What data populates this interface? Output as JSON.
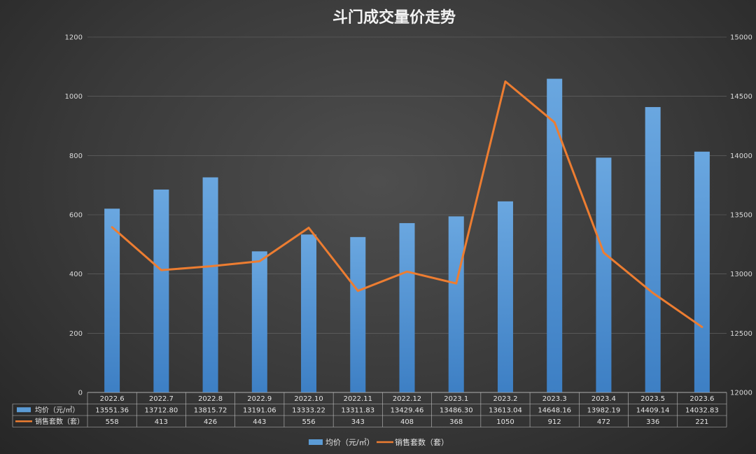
{
  "chart_data": {
    "type": "bar",
    "title": "斗门成交量价走势",
    "categories": [
      "2022.6",
      "2022.7",
      "2022.8",
      "2022.9",
      "2022.10",
      "2022.11",
      "2022.12",
      "2023.1",
      "2023.2",
      "2023.3",
      "2023.4",
      "2023.5",
      "2023.6"
    ],
    "series": [
      {
        "name": "均价（元/㎡）",
        "type": "bar",
        "axis": "right",
        "color": "#5b9bd5",
        "values": [
          13551.36,
          13712.8,
          13815.72,
          13191.06,
          13333.22,
          13311.83,
          13429.46,
          13486.3,
          13613.04,
          14648.16,
          13982.19,
          14409.14,
          14032.83
        ],
        "display": [
          "13551.36",
          "13712.80",
          "13815.72",
          "13191.06",
          "13333.22",
          "13311.83",
          "13429.46",
          "13486.30",
          "13613.04",
          "14648.16",
          "13982.19",
          "14409.14",
          "14032.83"
        ]
      },
      {
        "name": "销售套数（套）",
        "type": "line",
        "axis": "left",
        "color": "#ed7d31",
        "values": [
          558,
          413,
          426,
          443,
          556,
          343,
          408,
          368,
          1050,
          912,
          472,
          336,
          221
        ],
        "display": [
          "558",
          "413",
          "426",
          "443",
          "556",
          "343",
          "408",
          "368",
          "1050",
          "912",
          "472",
          "336",
          "221"
        ]
      }
    ],
    "left_axis": {
      "min": 0,
      "max": 1200,
      "ticks": [
        "0",
        "200",
        "400",
        "600",
        "800",
        "1000",
        "1200"
      ]
    },
    "right_axis": {
      "min": 12000,
      "max": 15000,
      "ticks": [
        "12000",
        "12500",
        "13000",
        "13500",
        "14000",
        "14500",
        "15000"
      ]
    },
    "grid": true,
    "data_table": true,
    "legend_position": "bottom"
  }
}
